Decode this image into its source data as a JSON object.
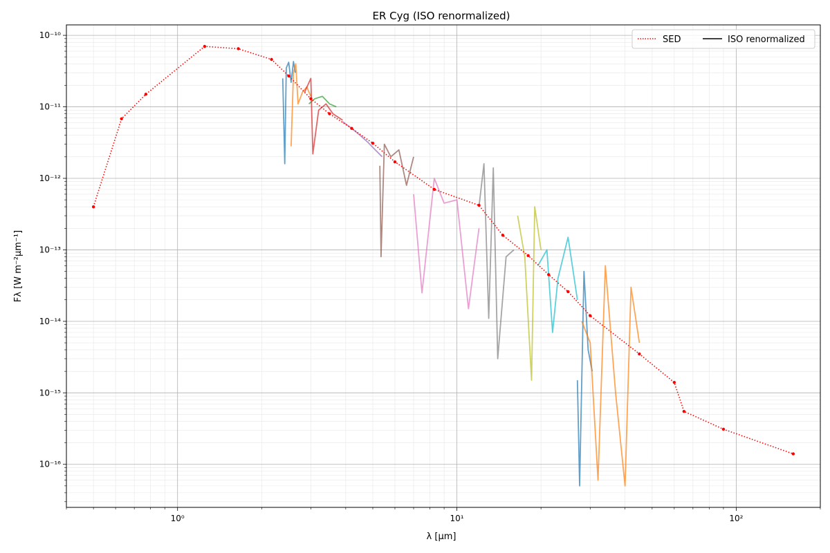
{
  "chart_data": {
    "type": "line",
    "title": "ER Cyg (ISO renormalized)",
    "xlabel": "λ [μm]",
    "ylabel": "Fλ [W m⁻²μm⁻¹]",
    "xscale": "log",
    "yscale": "log",
    "xlim": [
      0.4,
      200
    ],
    "ylim": [
      2.5e-17,
      1.4e-10
    ],
    "grid": true,
    "legend": {
      "placement": "top-right",
      "entries": [
        {
          "label": "SED",
          "color": "#ff0000",
          "style": "dotted"
        },
        {
          "label": "ISO renormalized",
          "color": "#000000",
          "style": "solid"
        }
      ]
    },
    "x_tick_labels": [
      {
        "value": 1,
        "label": "10⁰"
      },
      {
        "value": 10,
        "label": "10¹"
      },
      {
        "value": 100,
        "label": "10²"
      }
    ],
    "y_tick_labels": [
      {
        "value": 1e-16,
        "label": "10⁻¹⁶"
      },
      {
        "value": 1e-15,
        "label": "10⁻¹⁵"
      },
      {
        "value": 1e-14,
        "label": "10⁻¹⁴"
      },
      {
        "value": 1e-13,
        "label": "10⁻¹³"
      },
      {
        "value": 1e-12,
        "label": "10⁻¹²"
      },
      {
        "value": 1e-11,
        "label": "10⁻¹¹"
      },
      {
        "value": 1e-10,
        "label": "10⁻¹⁰"
      }
    ],
    "sed": {
      "name": "SED",
      "color": "#ff0000",
      "x": [
        0.5,
        0.63,
        0.77,
        1.25,
        1.65,
        2.17,
        2.5,
        3.0,
        3.5,
        4.2,
        5.0,
        6.0,
        8.3,
        12.0,
        14.6,
        18.0,
        21.3,
        25.0,
        30.0,
        45.0,
        60.0,
        65.0,
        90.0,
        160.0
      ],
      "y": [
        4e-13,
        6.8e-12,
        1.5e-11,
        7e-11,
        6.5e-11,
        4.6e-11,
        2.7e-11,
        1.3e-11,
        8e-12,
        5e-12,
        3.1e-12,
        1.7e-12,
        7e-13,
        4.2e-13,
        1.6e-13,
        8.3e-14,
        4.5e-14,
        2.6e-14,
        1.2e-14,
        3.5e-15,
        1.4e-15,
        5.5e-16,
        3.1e-16,
        1.4e-16
      ]
    },
    "iso_segments": [
      {
        "color": "#1f77b4",
        "x": [
          2.38,
          2.42,
          2.45,
          2.5,
          2.55,
          2.6,
          2.64
        ],
        "y": [
          2.5e-11,
          1.6e-12,
          3.5e-11,
          4.2e-11,
          2.2e-11,
          4.3e-11,
          3e-11
        ]
      },
      {
        "color": "#ff7f0e",
        "x": [
          2.55,
          2.6,
          2.65,
          2.7,
          2.8,
          2.9,
          3.0
        ],
        "y": [
          2.8e-12,
          3e-11,
          4e-11,
          1.1e-11,
          1.6e-11,
          1.9e-11,
          1.4e-11
        ]
      },
      {
        "color": "#2ca02c",
        "x": [
          2.95,
          3.1,
          3.3,
          3.5,
          3.7
        ],
        "y": [
          1.1e-11,
          1.3e-11,
          1.4e-11,
          1.1e-11,
          1e-11
        ]
      },
      {
        "color": "#d62728",
        "x": [
          2.85,
          3.0,
          3.05,
          3.2,
          3.4,
          3.6,
          3.9
        ],
        "y": [
          1.6e-11,
          2.5e-11,
          2.2e-12,
          9e-12,
          1.1e-11,
          8e-12,
          6.5e-12
        ]
      },
      {
        "color": "#9467bd",
        "x": [
          3.9,
          4.2,
          4.5,
          4.8,
          5.1,
          5.4
        ],
        "y": [
          6.2e-12,
          5e-12,
          4e-12,
          3.2e-12,
          2.5e-12,
          2e-12
        ]
      },
      {
        "color": "#8c564b",
        "x": [
          5.3,
          5.35,
          5.5,
          5.8,
          6.2,
          6.6,
          7.0
        ],
        "y": [
          1.5e-12,
          8e-14,
          3e-12,
          2e-12,
          2.5e-12,
          8e-13,
          2e-12
        ]
      },
      {
        "color": "#e377c2",
        "x": [
          7.0,
          7.5,
          8.3,
          9.0,
          10.0,
          11.0,
          12.0
        ],
        "y": [
          6e-13,
          2.5e-14,
          1e-12,
          4.5e-13,
          5e-13,
          1.5e-14,
          2e-13
        ]
      },
      {
        "color": "#7f7f7f",
        "x": [
          12.0,
          12.5,
          13.0,
          13.5,
          14.0,
          15.0,
          16.0
        ],
        "y": [
          4e-13,
          1.6e-12,
          1.1e-14,
          1.4e-12,
          3e-15,
          8e-14,
          1e-13
        ]
      },
      {
        "color": "#bcbd22",
        "x": [
          16.5,
          17.5,
          18.5,
          19.0,
          20.0
        ],
        "y": [
          3e-13,
          8e-14,
          1.5e-15,
          4e-13,
          1e-13
        ]
      },
      {
        "color": "#17becf",
        "x": [
          19.5,
          21.0,
          22.0,
          23.0,
          25.0,
          27.0
        ],
        "y": [
          6e-14,
          1e-13,
          7e-15,
          4e-14,
          1.5e-13,
          2e-14
        ]
      },
      {
        "color": "#1f77b4",
        "x": [
          27.0,
          27.5,
          28.5,
          29.5,
          30.5
        ],
        "y": [
          1.5e-15,
          5e-17,
          5e-14,
          4e-15,
          2e-15
        ]
      },
      {
        "color": "#ff7f0e",
        "x": [
          28.0,
          30.0,
          32.0,
          34.0,
          37.0,
          40.0,
          42.0,
          45.0
        ],
        "y": [
          1e-14,
          5e-15,
          6e-17,
          6e-14,
          1e-15,
          5e-17,
          3e-14,
          5e-15
        ]
      }
    ]
  }
}
